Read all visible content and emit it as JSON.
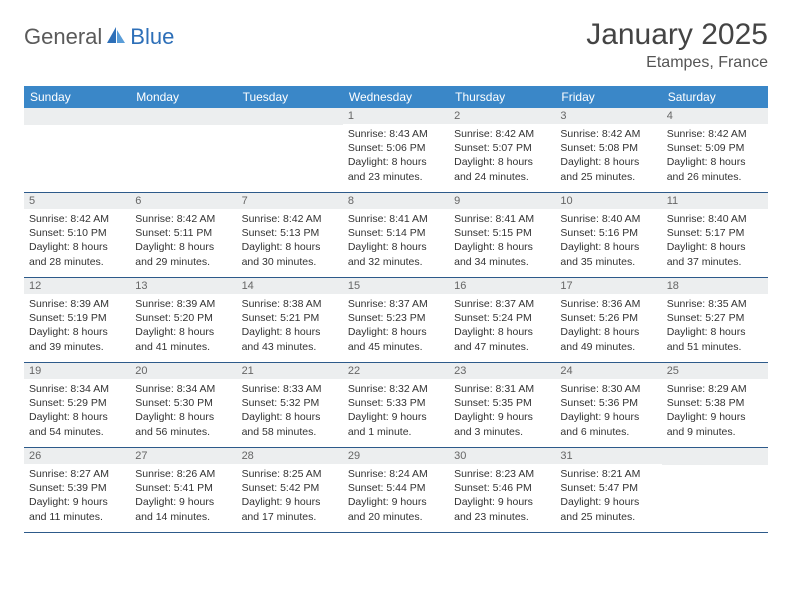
{
  "logo": {
    "part1": "General",
    "part2": "Blue"
  },
  "title": "January 2025",
  "location": "Etampes, France",
  "header_bg": "#3a87c8",
  "daynum_bg": "#eceeef",
  "border_color": "#2d5a8a",
  "day_headers": [
    "Sunday",
    "Monday",
    "Tuesday",
    "Wednesday",
    "Thursday",
    "Friday",
    "Saturday"
  ],
  "weeks": [
    [
      null,
      null,
      null,
      {
        "n": "1",
        "sunrise": "8:43 AM",
        "sunset": "5:06 PM",
        "dl": "8 hours and 23 minutes."
      },
      {
        "n": "2",
        "sunrise": "8:42 AM",
        "sunset": "5:07 PM",
        "dl": "8 hours and 24 minutes."
      },
      {
        "n": "3",
        "sunrise": "8:42 AM",
        "sunset": "5:08 PM",
        "dl": "8 hours and 25 minutes."
      },
      {
        "n": "4",
        "sunrise": "8:42 AM",
        "sunset": "5:09 PM",
        "dl": "8 hours and 26 minutes."
      }
    ],
    [
      {
        "n": "5",
        "sunrise": "8:42 AM",
        "sunset": "5:10 PM",
        "dl": "8 hours and 28 minutes."
      },
      {
        "n": "6",
        "sunrise": "8:42 AM",
        "sunset": "5:11 PM",
        "dl": "8 hours and 29 minutes."
      },
      {
        "n": "7",
        "sunrise": "8:42 AM",
        "sunset": "5:13 PM",
        "dl": "8 hours and 30 minutes."
      },
      {
        "n": "8",
        "sunrise": "8:41 AM",
        "sunset": "5:14 PM",
        "dl": "8 hours and 32 minutes."
      },
      {
        "n": "9",
        "sunrise": "8:41 AM",
        "sunset": "5:15 PM",
        "dl": "8 hours and 34 minutes."
      },
      {
        "n": "10",
        "sunrise": "8:40 AM",
        "sunset": "5:16 PM",
        "dl": "8 hours and 35 minutes."
      },
      {
        "n": "11",
        "sunrise": "8:40 AM",
        "sunset": "5:17 PM",
        "dl": "8 hours and 37 minutes."
      }
    ],
    [
      {
        "n": "12",
        "sunrise": "8:39 AM",
        "sunset": "5:19 PM",
        "dl": "8 hours and 39 minutes."
      },
      {
        "n": "13",
        "sunrise": "8:39 AM",
        "sunset": "5:20 PM",
        "dl": "8 hours and 41 minutes."
      },
      {
        "n": "14",
        "sunrise": "8:38 AM",
        "sunset": "5:21 PM",
        "dl": "8 hours and 43 minutes."
      },
      {
        "n": "15",
        "sunrise": "8:37 AM",
        "sunset": "5:23 PM",
        "dl": "8 hours and 45 minutes."
      },
      {
        "n": "16",
        "sunrise": "8:37 AM",
        "sunset": "5:24 PM",
        "dl": "8 hours and 47 minutes."
      },
      {
        "n": "17",
        "sunrise": "8:36 AM",
        "sunset": "5:26 PM",
        "dl": "8 hours and 49 minutes."
      },
      {
        "n": "18",
        "sunrise": "8:35 AM",
        "sunset": "5:27 PM",
        "dl": "8 hours and 51 minutes."
      }
    ],
    [
      {
        "n": "19",
        "sunrise": "8:34 AM",
        "sunset": "5:29 PM",
        "dl": "8 hours and 54 minutes."
      },
      {
        "n": "20",
        "sunrise": "8:34 AM",
        "sunset": "5:30 PM",
        "dl": "8 hours and 56 minutes."
      },
      {
        "n": "21",
        "sunrise": "8:33 AM",
        "sunset": "5:32 PM",
        "dl": "8 hours and 58 minutes."
      },
      {
        "n": "22",
        "sunrise": "8:32 AM",
        "sunset": "5:33 PM",
        "dl": "9 hours and 1 minute."
      },
      {
        "n": "23",
        "sunrise": "8:31 AM",
        "sunset": "5:35 PM",
        "dl": "9 hours and 3 minutes."
      },
      {
        "n": "24",
        "sunrise": "8:30 AM",
        "sunset": "5:36 PM",
        "dl": "9 hours and 6 minutes."
      },
      {
        "n": "25",
        "sunrise": "8:29 AM",
        "sunset": "5:38 PM",
        "dl": "9 hours and 9 minutes."
      }
    ],
    [
      {
        "n": "26",
        "sunrise": "8:27 AM",
        "sunset": "5:39 PM",
        "dl": "9 hours and 11 minutes."
      },
      {
        "n": "27",
        "sunrise": "8:26 AM",
        "sunset": "5:41 PM",
        "dl": "9 hours and 14 minutes."
      },
      {
        "n": "28",
        "sunrise": "8:25 AM",
        "sunset": "5:42 PM",
        "dl": "9 hours and 17 minutes."
      },
      {
        "n": "29",
        "sunrise": "8:24 AM",
        "sunset": "5:44 PM",
        "dl": "9 hours and 20 minutes."
      },
      {
        "n": "30",
        "sunrise": "8:23 AM",
        "sunset": "5:46 PM",
        "dl": "9 hours and 23 minutes."
      },
      {
        "n": "31",
        "sunrise": "8:21 AM",
        "sunset": "5:47 PM",
        "dl": "9 hours and 25 minutes."
      },
      null
    ]
  ],
  "labels": {
    "sunrise": "Sunrise: ",
    "sunset": "Sunset: ",
    "daylight": "Daylight: "
  }
}
